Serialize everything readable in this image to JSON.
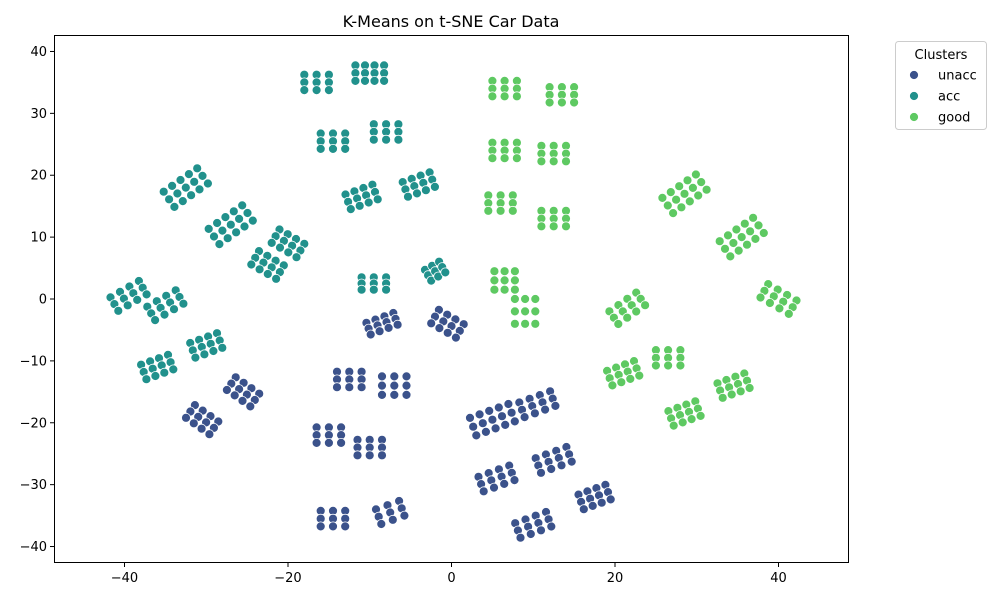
{
  "chart_data": {
    "type": "scatter",
    "title": "K-Means on t-SNE Car Data",
    "xlabel": "",
    "ylabel": "",
    "xlim": [
      -48.5,
      48.5
    ],
    "ylim": [
      -42.5,
      42.5
    ],
    "xticks": [
      -40,
      -20,
      0,
      20,
      40
    ],
    "yticks": [
      -40,
      -30,
      -20,
      -10,
      0,
      10,
      20,
      30,
      40
    ],
    "grid": false,
    "legend": {
      "title": "Clusters",
      "position": "outside-top-right"
    },
    "series": [
      {
        "name": "unacc",
        "color": "#3b528b",
        "blocks": [
          [
            -30.5,
            -19.5,
            3.5,
            2.5,
            -35
          ],
          [
            -25.5,
            -15,
            3.5,
            2.5,
            -35
          ],
          [
            -15,
            -22,
            3,
            2.5,
            0
          ],
          [
            -10,
            -24,
            3,
            2.5,
            0
          ],
          [
            -14.5,
            -35.5,
            3,
            2.5,
            0
          ],
          [
            -7.5,
            -34.5,
            3,
            2.5,
            20
          ],
          [
            -12.5,
            -13,
            3,
            2.5,
            0
          ],
          [
            -7,
            -14,
            3,
            3,
            0
          ],
          [
            -8.5,
            -4,
            3.5,
            2,
            20
          ],
          [
            -0.5,
            -4,
            3.5,
            2.5,
            -30
          ],
          [
            5,
            -19.5,
            5,
            3,
            20
          ],
          [
            10.5,
            -17,
            4,
            2.5,
            20
          ],
          [
            5.5,
            -29,
            4,
            2.5,
            20
          ],
          [
            12.5,
            -26,
            4,
            2.5,
            20
          ],
          [
            10,
            -36.5,
            4,
            2.5,
            20
          ],
          [
            17.5,
            -32,
            3.5,
            2.5,
            20
          ]
        ]
      },
      {
        "name": "acc",
        "color": "#21918c",
        "blocks": [
          [
            -16.5,
            35,
            3,
            2.5,
            0
          ],
          [
            -10,
            36.5,
            3.5,
            2.5,
            0
          ],
          [
            -14.5,
            25.5,
            3,
            2.5,
            0
          ],
          [
            -8,
            27,
            3,
            2.5,
            0
          ],
          [
            -11,
            16.5,
            3.5,
            2.5,
            20
          ],
          [
            -4,
            18.5,
            3.5,
            2.5,
            20
          ],
          [
            -32.5,
            18,
            5,
            3,
            35
          ],
          [
            -27,
            12,
            5,
            3,
            35
          ],
          [
            -22.5,
            5.5,
            3.5,
            2.5,
            -30
          ],
          [
            -20,
            9,
            3.5,
            2.5,
            -30
          ],
          [
            -39.5,
            0.5,
            4,
            2.5,
            30
          ],
          [
            -35,
            -1,
            4,
            2.5,
            30
          ],
          [
            -36,
            -11,
            3.5,
            2.5,
            20
          ],
          [
            -30,
            -7.5,
            3.5,
            2.5,
            20
          ],
          [
            -9.5,
            2.5,
            3,
            2,
            0
          ],
          [
            -2,
            4.5,
            2,
            2,
            30
          ]
        ]
      },
      {
        "name": "good",
        "color": "#5ec962",
        "blocks": [
          [
            6.5,
            34,
            3,
            2.5,
            0
          ],
          [
            13.5,
            33,
            3,
            2.5,
            0
          ],
          [
            6.5,
            24,
            3,
            2.5,
            0
          ],
          [
            12.5,
            23.5,
            3,
            2.5,
            0
          ],
          [
            6,
            15.5,
            3,
            2.5,
            0
          ],
          [
            12.5,
            13,
            3,
            2.5,
            0
          ],
          [
            6.5,
            3,
            2.5,
            3,
            0
          ],
          [
            9,
            -2,
            2.5,
            4,
            0
          ],
          [
            21.5,
            -1.5,
            4,
            2.5,
            35
          ],
          [
            28.5,
            17,
            5,
            3,
            35
          ],
          [
            35.5,
            10,
            5,
            3,
            35
          ],
          [
            40,
            0,
            4,
            2.5,
            -30
          ],
          [
            26.5,
            -9.5,
            3,
            2.5,
            0
          ],
          [
            21,
            -12,
            3.5,
            2.5,
            20
          ],
          [
            28.5,
            -18.5,
            3.5,
            2.5,
            20
          ],
          [
            34.5,
            -14,
            3.5,
            2.5,
            20
          ]
        ]
      }
    ]
  }
}
